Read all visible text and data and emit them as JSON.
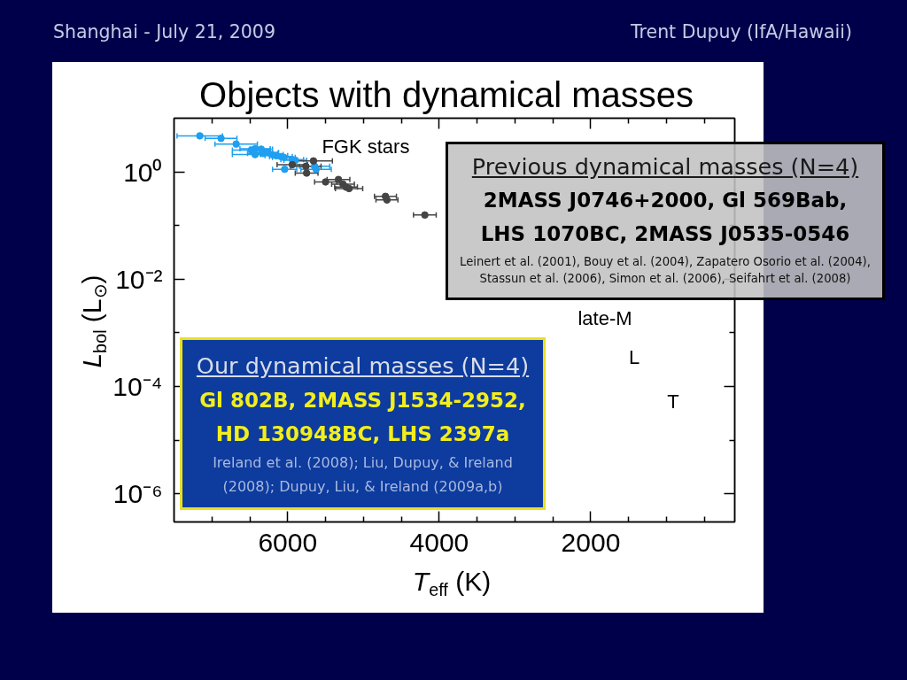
{
  "chart_data": {
    "type": "scatter",
    "title": "Objects with dynamical masses",
    "xlabel": "T$_{eff}$ (K)",
    "ylabel": "L$_{bol}$ (L$_{⊙}$)",
    "annotations": [
      "Shanghai - July 21, 2009",
      "Trent Dupuy (IfA/Hawaii)",
      {
        "text": "FGK stars",
        "x": 5625,
        "y": 1.12
      },
      "late-M",
      "L",
      "T",
      "Previous dynamical masses (N=4)",
      "2MASS J0746+2000, Gl 569Bab,\nLHS 1070BC, 2MASS J0535-0546",
      "Leinert et al. (2001), Bouy et al. (2004), Zapatero Osorio et al. (2004),\nStassun et al. (2006), Simon et al. (2006), Seifahrt et al. (2008)",
      "Our dynamical masses (N=4)",
      "Gl 802B, 2MASS J1534-2952,\nHD 130948BC, LHS 2397a",
      "Ireland et al. (2008); Liu, Dupuy, & Ireland\n(2008); Dupuy, Liu, & Ireland (2009a,b)"
    ],
    "series": [
      {
        "color": "#1f9ff0",
        "x": [
          7160,
          6880,
          6680,
          6480,
          6430,
          6350,
          6330,
          6430,
          6270,
          6210,
          6150,
          6090,
          6050,
          5940,
          5900,
          6040,
          5645,
          5625
        ],
        "values": [
          4.7,
          4.2,
          3.3,
          2.55,
          2.7,
          2.65,
          2.2,
          2.1,
          2.3,
          2.1,
          2.0,
          1.93,
          1.86,
          1.7,
          1.64,
          1.12,
          1.27,
          1.12
        ],
        "xerrors": [
          300,
          210,
          280,
          250,
          200,
          150,
          200,
          300,
          150,
          150,
          150,
          150,
          150,
          150,
          150,
          160,
          200,
          200
        ]
      },
      {
        "color": "#444444",
        "x": [
          5660,
          5940,
          5760,
          5750,
          5500,
          5330,
          5270,
          5190,
          5230,
          4710,
          4690,
          4190
        ],
        "values": [
          1.6,
          1.36,
          1.27,
          0.95,
          0.65,
          0.72,
          0.59,
          0.49,
          0.52,
          0.35,
          0.3,
          0.157
        ],
        "xerrors": [
          250,
          200,
          200,
          150,
          145,
          150,
          150,
          180,
          150,
          145,
          145,
          150
        ]
      }
    ],
    "xlim": [
      7500,
      100
    ],
    "ylim": [
      3e-07,
      10
    ],
    "xticks": [
      {
        "value": 7000,
        "label": null
      },
      {
        "value": 6500,
        "label": null
      },
      6000,
      {
        "value": 5500,
        "label": null
      },
      {
        "value": 5000,
        "label": null
      },
      {
        "value": 4500,
        "label": null
      },
      4000,
      {
        "value": 3500,
        "label": null
      },
      {
        "value": 3000,
        "label": null
      },
      {
        "value": 2500,
        "label": null
      },
      2000,
      {
        "value": 1500,
        "label": null
      },
      {
        "value": 1000,
        "label": null
      },
      {
        "value": 500,
        "label": null
      }
    ],
    "yticks": [
      {
        "value": 1,
        "label": "10⁰"
      },
      {
        "value": 0.1,
        "label": null
      },
      {
        "value": 0.01,
        "label": "10⁻²"
      },
      {
        "value": 0.001,
        "label": null
      },
      {
        "value": 0.0001,
        "label": "10⁻⁴"
      },
      {
        "value": 1e-05,
        "label": null
      },
      {
        "value": 1e-06,
        "label": "10⁻⁶"
      }
    ],
    "log": "y",
    "marker": "circle"
  }
}
